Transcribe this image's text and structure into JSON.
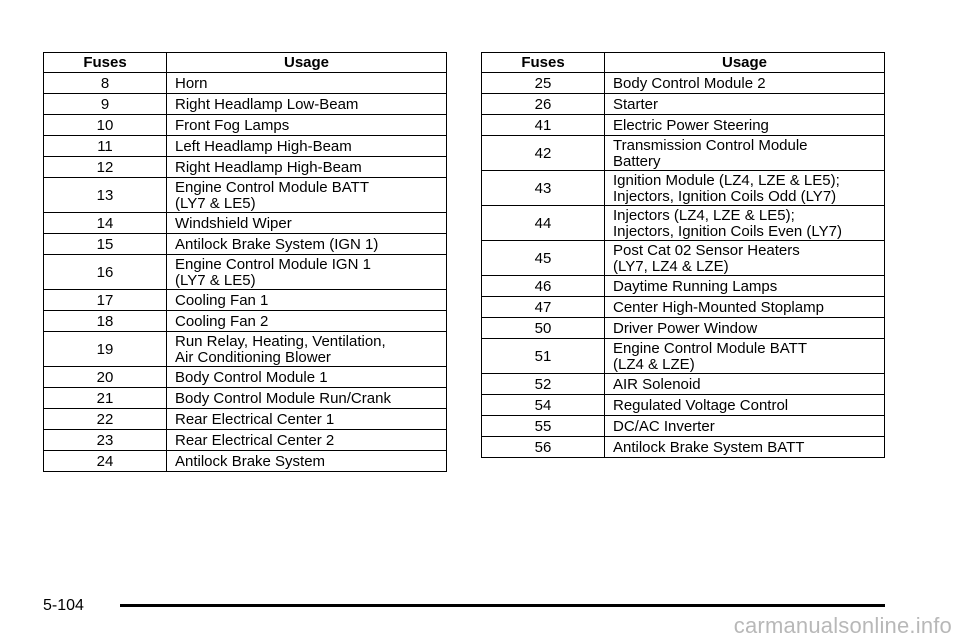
{
  "left_table": {
    "headers": [
      "Fuses",
      "Usage"
    ],
    "rows": [
      {
        "fuse": "8",
        "usage": "Horn"
      },
      {
        "fuse": "9",
        "usage": "Right Headlamp Low-Beam"
      },
      {
        "fuse": "10",
        "usage": "Front Fog Lamps"
      },
      {
        "fuse": "11",
        "usage": "Left Headlamp High-Beam"
      },
      {
        "fuse": "12",
        "usage": "Right Headlamp High-Beam"
      },
      {
        "fuse": "13",
        "usage": "Engine Control Module BATT\n(LY7 & LE5)"
      },
      {
        "fuse": "14",
        "usage": "Windshield Wiper"
      },
      {
        "fuse": "15",
        "usage": "Antilock Brake System (IGN 1)"
      },
      {
        "fuse": "16",
        "usage": "Engine Control Module IGN 1\n(LY7 & LE5)"
      },
      {
        "fuse": "17",
        "usage": "Cooling Fan 1"
      },
      {
        "fuse": "18",
        "usage": "Cooling Fan 2"
      },
      {
        "fuse": "19",
        "usage": "Run Relay, Heating, Ventilation,\nAir Conditioning Blower"
      },
      {
        "fuse": "20",
        "usage": "Body Control Module 1"
      },
      {
        "fuse": "21",
        "usage": "Body Control Module Run/Crank"
      },
      {
        "fuse": "22",
        "usage": "Rear Electrical Center 1"
      },
      {
        "fuse": "23",
        "usage": "Rear Electrical Center 2"
      },
      {
        "fuse": "24",
        "usage": "Antilock Brake System"
      }
    ]
  },
  "right_table": {
    "headers": [
      "Fuses",
      "Usage"
    ],
    "rows": [
      {
        "fuse": "25",
        "usage": "Body Control Module 2"
      },
      {
        "fuse": "26",
        "usage": "Starter"
      },
      {
        "fuse": "41",
        "usage": "Electric Power Steering"
      },
      {
        "fuse": "42",
        "usage": "Transmission Control Module\nBattery"
      },
      {
        "fuse": "43",
        "usage": "Ignition Module (LZ4, LZE & LE5);\nInjectors, Ignition Coils Odd (LY7)"
      },
      {
        "fuse": "44",
        "usage": "Injectors (LZ4, LZE & LE5);\nInjectors, Ignition Coils Even (LY7)"
      },
      {
        "fuse": "45",
        "usage": "Post Cat 02 Sensor Heaters\n(LY7, LZ4 & LZE)"
      },
      {
        "fuse": "46",
        "usage": "Daytime Running Lamps"
      },
      {
        "fuse": "47",
        "usage": "Center High-Mounted Stoplamp"
      },
      {
        "fuse": "50",
        "usage": "Driver Power Window"
      },
      {
        "fuse": "51",
        "usage": "Engine Control Module BATT\n(LZ4 & LZE)"
      },
      {
        "fuse": "52",
        "usage": "AIR Solenoid"
      },
      {
        "fuse": "54",
        "usage": "Regulated Voltage Control"
      },
      {
        "fuse": "55",
        "usage": "DC/AC Inverter"
      },
      {
        "fuse": "56",
        "usage": "Antilock Brake System BATT"
      }
    ]
  },
  "footer": {
    "page_number": "5-104",
    "watermark": "carmanualsonline.info"
  }
}
